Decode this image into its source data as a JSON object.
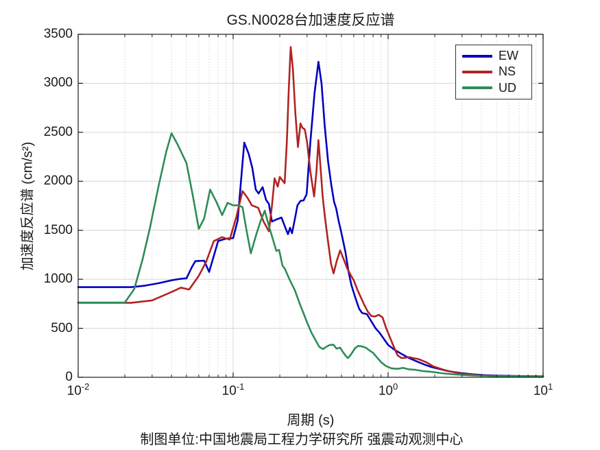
{
  "title": "GS.N0028台加速度反应谱",
  "xlabel": "周期 (s)",
  "ylabel": "加速度反应谱 (cm/s²)",
  "caption": "制图单位:中国地震局工程力学研究所 强震动观测中心",
  "colors": {
    "axis": "#1a1a1a",
    "grid_major": "#d4d4d4",
    "grid_minor": "#c4c4c4",
    "background": "#ffffff"
  },
  "legend": {
    "position": "top-right",
    "items": [
      {
        "label": "EW",
        "color": "#0000C0"
      },
      {
        "label": "NS",
        "color": "#B22222"
      },
      {
        "label": "UD",
        "color": "#2E8B57"
      }
    ]
  },
  "axes": {
    "x_ticks": [
      {
        "v": 0.01,
        "base": "10",
        "exp": "-2"
      },
      {
        "v": 0.1,
        "base": "10",
        "exp": "-1"
      },
      {
        "v": 1,
        "base": "10",
        "exp": "0"
      },
      {
        "v": 10,
        "base": "10",
        "exp": "1"
      }
    ]
  },
  "chart_data": {
    "type": "line",
    "title": "GS.N0028台加速度反应谱",
    "xlabel": "周期 (s)",
    "ylabel": "加速度反应谱 (cm/s²)",
    "xscale": "log",
    "xlim": [
      0.01,
      10
    ],
    "ylim": [
      0,
      3500
    ],
    "ytick_step": 500,
    "grid": true,
    "legend_position": "top-right",
    "series": [
      {
        "name": "EW",
        "color": "#0000C0",
        "points": [
          [
            0.01,
            920
          ],
          [
            0.022,
            920
          ],
          [
            0.027,
            935
          ],
          [
            0.033,
            960
          ],
          [
            0.04,
            990
          ],
          [
            0.046,
            1005
          ],
          [
            0.05,
            1010
          ],
          [
            0.054,
            1120
          ],
          [
            0.057,
            1185
          ],
          [
            0.065,
            1190
          ],
          [
            0.07,
            1075
          ],
          [
            0.08,
            1390
          ],
          [
            0.09,
            1415
          ],
          [
            0.1,
            1420
          ],
          [
            0.107,
            1600
          ],
          [
            0.118,
            2395
          ],
          [
            0.126,
            2280
          ],
          [
            0.133,
            2135
          ],
          [
            0.14,
            1915
          ],
          [
            0.146,
            1875
          ],
          [
            0.155,
            1940
          ],
          [
            0.163,
            1810
          ],
          [
            0.17,
            1770
          ],
          [
            0.178,
            1590
          ],
          [
            0.19,
            1610
          ],
          [
            0.205,
            1630
          ],
          [
            0.218,
            1520
          ],
          [
            0.226,
            1460
          ],
          [
            0.233,
            1525
          ],
          [
            0.24,
            1470
          ],
          [
            0.252,
            1640
          ],
          [
            0.26,
            1755
          ],
          [
            0.272,
            1800
          ],
          [
            0.285,
            1805
          ],
          [
            0.298,
            1870
          ],
          [
            0.315,
            2400
          ],
          [
            0.335,
            2900
          ],
          [
            0.355,
            3220
          ],
          [
            0.372,
            3000
          ],
          [
            0.39,
            2560
          ],
          [
            0.41,
            2200
          ],
          [
            0.43,
            1960
          ],
          [
            0.448,
            1790
          ],
          [
            0.462,
            1725
          ],
          [
            0.48,
            1590
          ],
          [
            0.5,
            1470
          ],
          [
            0.53,
            1280
          ],
          [
            0.555,
            1080
          ],
          [
            0.58,
            940
          ],
          [
            0.615,
            810
          ],
          [
            0.65,
            700
          ],
          [
            0.68,
            655
          ],
          [
            0.73,
            645
          ],
          [
            0.78,
            570
          ],
          [
            0.83,
            500
          ],
          [
            0.88,
            455
          ],
          [
            0.95,
            380
          ],
          [
            1.0,
            330
          ],
          [
            1.1,
            280
          ],
          [
            1.2,
            245
          ],
          [
            1.35,
            200
          ],
          [
            1.5,
            168
          ],
          [
            1.7,
            132
          ],
          [
            1.9,
            105
          ],
          [
            2.1,
            88
          ],
          [
            2.4,
            66
          ],
          [
            2.7,
            52
          ],
          [
            3.0,
            42
          ],
          [
            3.5,
            30
          ],
          [
            4.2,
            22
          ],
          [
            5.0,
            17
          ],
          [
            6.5,
            13
          ],
          [
            8.0,
            11
          ],
          [
            10,
            10
          ]
        ]
      },
      {
        "name": "NS",
        "color": "#B22222",
        "points": [
          [
            0.01,
            760
          ],
          [
            0.022,
            760
          ],
          [
            0.03,
            785
          ],
          [
            0.04,
            870
          ],
          [
            0.046,
            915
          ],
          [
            0.052,
            895
          ],
          [
            0.06,
            1035
          ],
          [
            0.067,
            1180
          ],
          [
            0.075,
            1390
          ],
          [
            0.085,
            1430
          ],
          [
            0.095,
            1405
          ],
          [
            0.105,
            1640
          ],
          [
            0.115,
            1900
          ],
          [
            0.124,
            1830
          ],
          [
            0.132,
            1755
          ],
          [
            0.145,
            1730
          ],
          [
            0.157,
            1590
          ],
          [
            0.17,
            1490
          ],
          [
            0.178,
            1750
          ],
          [
            0.185,
            2030
          ],
          [
            0.194,
            1945
          ],
          [
            0.2,
            2045
          ],
          [
            0.208,
            2010
          ],
          [
            0.215,
            1980
          ],
          [
            0.222,
            2400
          ],
          [
            0.228,
            2900
          ],
          [
            0.235,
            3370
          ],
          [
            0.243,
            3150
          ],
          [
            0.252,
            2700
          ],
          [
            0.262,
            2350
          ],
          [
            0.272,
            2590
          ],
          [
            0.28,
            2545
          ],
          [
            0.29,
            2530
          ],
          [
            0.3,
            2400
          ],
          [
            0.315,
            2100
          ],
          [
            0.333,
            1845
          ],
          [
            0.345,
            2100
          ],
          [
            0.355,
            2420
          ],
          [
            0.368,
            2100
          ],
          [
            0.378,
            1850
          ],
          [
            0.39,
            1650
          ],
          [
            0.41,
            1380
          ],
          [
            0.428,
            1160
          ],
          [
            0.445,
            1060
          ],
          [
            0.465,
            1180
          ],
          [
            0.49,
            1295
          ],
          [
            0.515,
            1210
          ],
          [
            0.545,
            1110
          ],
          [
            0.575,
            1040
          ],
          [
            0.6,
            990
          ],
          [
            0.635,
            890
          ],
          [
            0.665,
            820
          ],
          [
            0.7,
            742
          ],
          [
            0.74,
            670
          ],
          [
            0.78,
            625
          ],
          [
            0.82,
            620
          ],
          [
            0.87,
            638
          ],
          [
            0.92,
            612
          ],
          [
            0.97,
            505
          ],
          [
            1.02,
            420
          ],
          [
            1.06,
            355
          ],
          [
            1.11,
            280
          ],
          [
            1.15,
            225
          ],
          [
            1.22,
            197
          ],
          [
            1.3,
            200
          ],
          [
            1.37,
            206
          ],
          [
            1.45,
            196
          ],
          [
            1.55,
            188
          ],
          [
            1.65,
            172
          ],
          [
            1.78,
            150
          ],
          [
            1.95,
            113
          ],
          [
            2.1,
            95
          ],
          [
            2.3,
            75
          ],
          [
            2.5,
            60
          ],
          [
            2.8,
            45
          ],
          [
            3.1,
            33
          ],
          [
            3.5,
            25
          ],
          [
            4.0,
            19
          ],
          [
            4.6,
            15
          ],
          [
            5.5,
            12
          ],
          [
            7.0,
            10
          ],
          [
            8.5,
            9
          ],
          [
            10,
            8
          ]
        ]
      },
      {
        "name": "UD",
        "color": "#2E8B57",
        "points": [
          [
            0.01,
            762
          ],
          [
            0.02,
            762
          ],
          [
            0.023,
            900
          ],
          [
            0.026,
            1200
          ],
          [
            0.029,
            1520
          ],
          [
            0.033,
            1950
          ],
          [
            0.037,
            2300
          ],
          [
            0.04,
            2490
          ],
          [
            0.044,
            2370
          ],
          [
            0.05,
            2185
          ],
          [
            0.055,
            1850
          ],
          [
            0.06,
            1515
          ],
          [
            0.065,
            1620
          ],
          [
            0.071,
            1915
          ],
          [
            0.078,
            1790
          ],
          [
            0.085,
            1655
          ],
          [
            0.092,
            1780
          ],
          [
            0.1,
            1755
          ],
          [
            0.108,
            1755
          ],
          [
            0.115,
            1735
          ],
          [
            0.122,
            1500
          ],
          [
            0.13,
            1265
          ],
          [
            0.14,
            1440
          ],
          [
            0.15,
            1590
          ],
          [
            0.16,
            1700
          ],
          [
            0.17,
            1545
          ],
          [
            0.18,
            1415
          ],
          [
            0.19,
            1290
          ],
          [
            0.198,
            1300
          ],
          [
            0.203,
            1220
          ],
          [
            0.208,
            1140
          ],
          [
            0.216,
            1105
          ],
          [
            0.23,
            1005
          ],
          [
            0.25,
            890
          ],
          [
            0.27,
            745
          ],
          [
            0.285,
            650
          ],
          [
            0.3,
            560
          ],
          [
            0.32,
            455
          ],
          [
            0.34,
            380
          ],
          [
            0.36,
            310
          ],
          [
            0.38,
            288
          ],
          [
            0.4,
            312
          ],
          [
            0.42,
            330
          ],
          [
            0.445,
            332
          ],
          [
            0.465,
            292
          ],
          [
            0.49,
            302
          ],
          [
            0.515,
            250
          ],
          [
            0.535,
            215
          ],
          [
            0.55,
            196
          ],
          [
            0.575,
            232
          ],
          [
            0.61,
            295
          ],
          [
            0.64,
            320
          ],
          [
            0.68,
            315
          ],
          [
            0.72,
            300
          ],
          [
            0.76,
            272
          ],
          [
            0.8,
            250
          ],
          [
            0.85,
            200
          ],
          [
            0.9,
            155
          ],
          [
            0.97,
            114
          ],
          [
            1.05,
            92
          ],
          [
            1.15,
            86
          ],
          [
            1.25,
            96
          ],
          [
            1.35,
            82
          ],
          [
            1.5,
            76
          ],
          [
            1.7,
            62
          ],
          [
            1.9,
            56
          ],
          [
            2.2,
            42
          ],
          [
            2.6,
            31
          ],
          [
            3.0,
            25
          ],
          [
            3.5,
            19
          ],
          [
            4.5,
            14
          ],
          [
            6.0,
            11
          ],
          [
            8.0,
            9
          ],
          [
            10,
            8
          ]
        ]
      }
    ]
  }
}
